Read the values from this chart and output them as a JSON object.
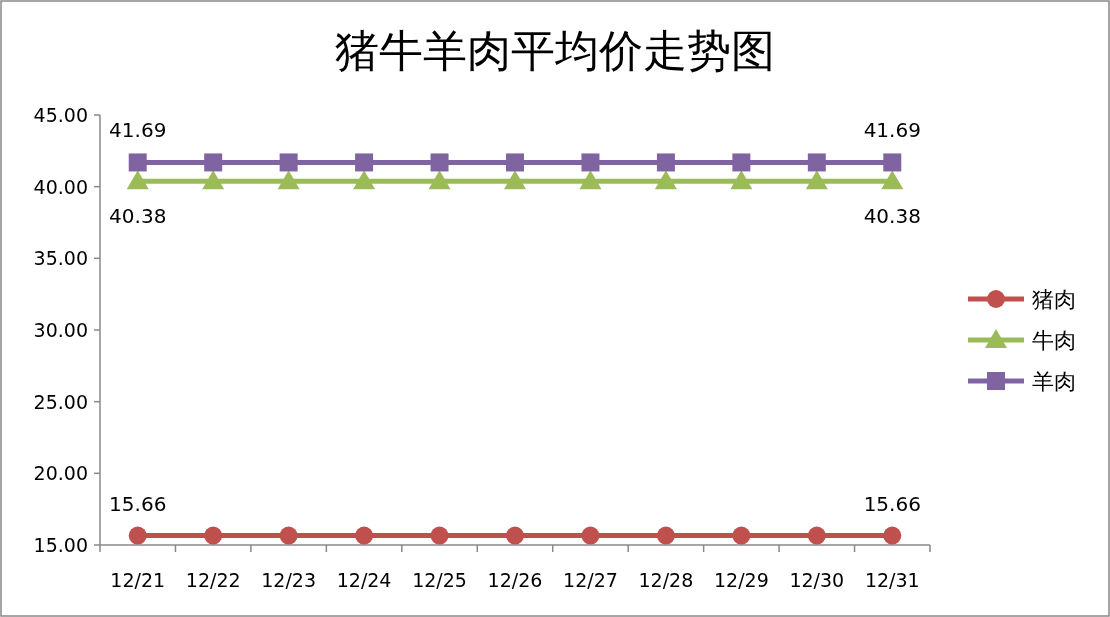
{
  "chart_data": {
    "type": "line",
    "title": "猪牛羊肉平均价走势图",
    "categories": [
      "12/21",
      "12/22",
      "12/23",
      "12/24",
      "12/25",
      "12/26",
      "12/27",
      "12/28",
      "12/29",
      "12/30",
      "12/31"
    ],
    "series": [
      {
        "name": "猪肉",
        "color": "#c0504d",
        "marker": "circle",
        "values": [
          15.66,
          15.66,
          15.66,
          15.66,
          15.66,
          15.66,
          15.66,
          15.66,
          15.66,
          15.66,
          15.66
        ],
        "value_labels": [
          "15.66",
          null,
          null,
          null,
          null,
          null,
          null,
          null,
          null,
          null,
          "15.66"
        ]
      },
      {
        "name": "牛肉",
        "color": "#9bbb59",
        "marker": "triangle",
        "values": [
          40.38,
          40.38,
          40.38,
          40.38,
          40.38,
          40.38,
          40.38,
          40.38,
          40.38,
          40.38,
          40.38
        ],
        "value_labels": [
          "40.38",
          null,
          null,
          null,
          null,
          null,
          null,
          null,
          null,
          null,
          "40.38"
        ]
      },
      {
        "name": "羊肉",
        "color": "#8064a2",
        "marker": "square",
        "values": [
          41.69,
          41.69,
          41.69,
          41.69,
          41.69,
          41.69,
          41.69,
          41.69,
          41.69,
          41.69,
          41.69
        ],
        "value_labels": [
          "41.69",
          null,
          null,
          null,
          null,
          null,
          null,
          null,
          null,
          null,
          "41.69"
        ]
      }
    ],
    "ylim": [
      15,
      45
    ],
    "yticks": [
      {
        "value": 15,
        "label": "15.00"
      },
      {
        "value": 20,
        "label": "20.00"
      },
      {
        "value": 25,
        "label": "25.00"
      },
      {
        "value": 30,
        "label": "30.00"
      },
      {
        "value": 35,
        "label": "35.00"
      },
      {
        "value": 40,
        "label": "40.00"
      },
      {
        "value": 45,
        "label": "45.00"
      }
    ],
    "grid": false,
    "legend": "right",
    "line_style": "solid"
  }
}
